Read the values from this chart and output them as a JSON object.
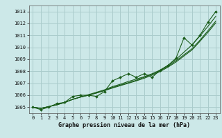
{
  "title": "Graphe pression niveau de la mer (hPa)",
  "bg_color": "#cce8e8",
  "grid_color": "#aacccc",
  "line_color": "#1a5c1a",
  "x_values": [
    0,
    1,
    2,
    3,
    4,
    5,
    6,
    7,
    8,
    9,
    10,
    11,
    12,
    13,
    14,
    15,
    16,
    17,
    18,
    19,
    20,
    21,
    22,
    23
  ],
  "main_data": [
    1005.0,
    1004.8,
    1005.0,
    1005.3,
    1005.4,
    1005.9,
    1006.0,
    1006.0,
    1005.9,
    1006.3,
    1007.2,
    1007.5,
    1007.8,
    1007.5,
    1007.8,
    1007.5,
    1008.1,
    1008.5,
    1009.1,
    1010.8,
    1010.2,
    1011.0,
    1012.1,
    1013.0
  ],
  "smooth1": [
    1005.0,
    1004.9,
    1005.05,
    1005.2,
    1005.4,
    1005.65,
    1005.85,
    1006.05,
    1006.25,
    1006.45,
    1006.72,
    1006.92,
    1007.15,
    1007.35,
    1007.55,
    1007.8,
    1008.1,
    1008.5,
    1009.0,
    1009.6,
    1010.2,
    1010.95,
    1011.75,
    1012.6
  ],
  "smooth2": [
    1005.0,
    1004.9,
    1005.05,
    1005.2,
    1005.4,
    1005.65,
    1005.85,
    1006.0,
    1006.2,
    1006.4,
    1006.65,
    1006.85,
    1007.05,
    1007.25,
    1007.5,
    1007.75,
    1008.05,
    1008.42,
    1008.88,
    1009.38,
    1009.88,
    1010.6,
    1011.38,
    1012.2
  ],
  "smooth3": [
    1005.0,
    1004.9,
    1005.05,
    1005.2,
    1005.4,
    1005.65,
    1005.85,
    1006.0,
    1006.18,
    1006.38,
    1006.6,
    1006.8,
    1007.0,
    1007.2,
    1007.42,
    1007.68,
    1007.98,
    1008.35,
    1008.78,
    1009.28,
    1009.78,
    1010.5,
    1011.25,
    1012.05
  ],
  "ylim": [
    1004.5,
    1013.5
  ],
  "yticks": [
    1005,
    1006,
    1007,
    1008,
    1009,
    1010,
    1011,
    1012,
    1013
  ],
  "xticks": [
    0,
    1,
    2,
    3,
    4,
    5,
    6,
    7,
    8,
    9,
    10,
    11,
    12,
    13,
    14,
    15,
    16,
    17,
    18,
    19,
    20,
    21,
    22,
    23
  ]
}
